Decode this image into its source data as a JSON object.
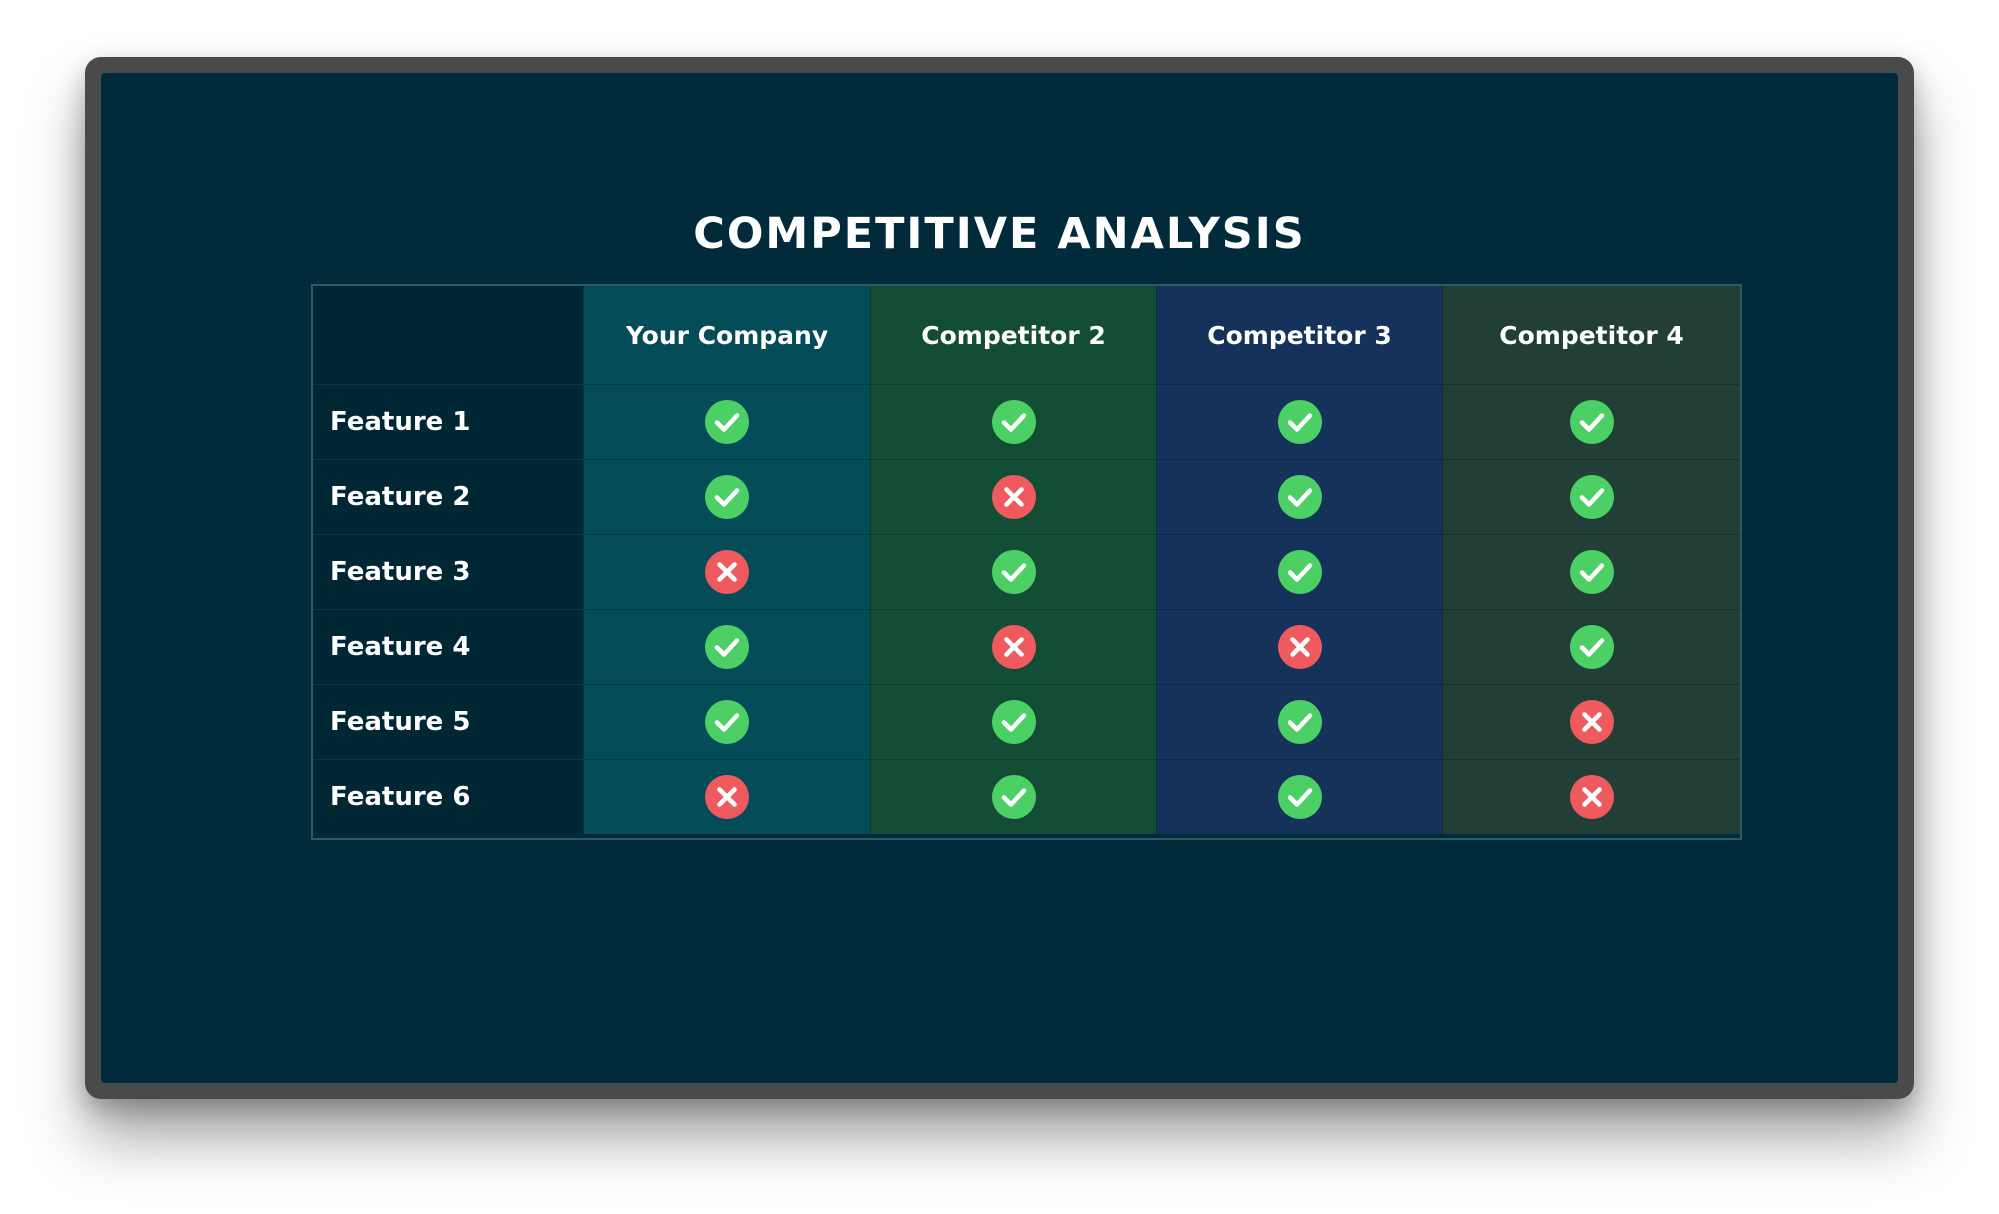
{
  "title": "COMPETITIVE ANALYSIS",
  "columns": [
    "Your Company",
    "Competitor 2",
    "Competitor 3",
    "Competitor 4"
  ],
  "rows": [
    {
      "label": "Feature 1",
      "values": [
        "check-icon",
        "check-icon",
        "check-icon",
        "check-icon"
      ]
    },
    {
      "label": "Feature 2",
      "values": [
        "check-icon",
        "cross-icon",
        "check-icon",
        "check-icon"
      ]
    },
    {
      "label": "Feature 3",
      "values": [
        "cross-icon",
        "check-icon",
        "check-icon",
        "check-icon"
      ]
    },
    {
      "label": "Feature 4",
      "values": [
        "check-icon",
        "cross-icon",
        "cross-icon",
        "check-icon"
      ]
    },
    {
      "label": "Feature 5",
      "values": [
        "check-icon",
        "check-icon",
        "check-icon",
        "cross-icon"
      ]
    },
    {
      "label": "Feature 6",
      "values": [
        "cross-icon",
        "check-icon",
        "check-icon",
        "cross-icon"
      ]
    }
  ],
  "colors": {
    "background": "#012b3a",
    "your_company_column": "#034c58",
    "competitor_2_column": "#134d35",
    "competitor_3_column": "#15325a",
    "competitor_4_column": "#213f36",
    "check": "#4cd066",
    "cross": "#ef5a5f"
  }
}
